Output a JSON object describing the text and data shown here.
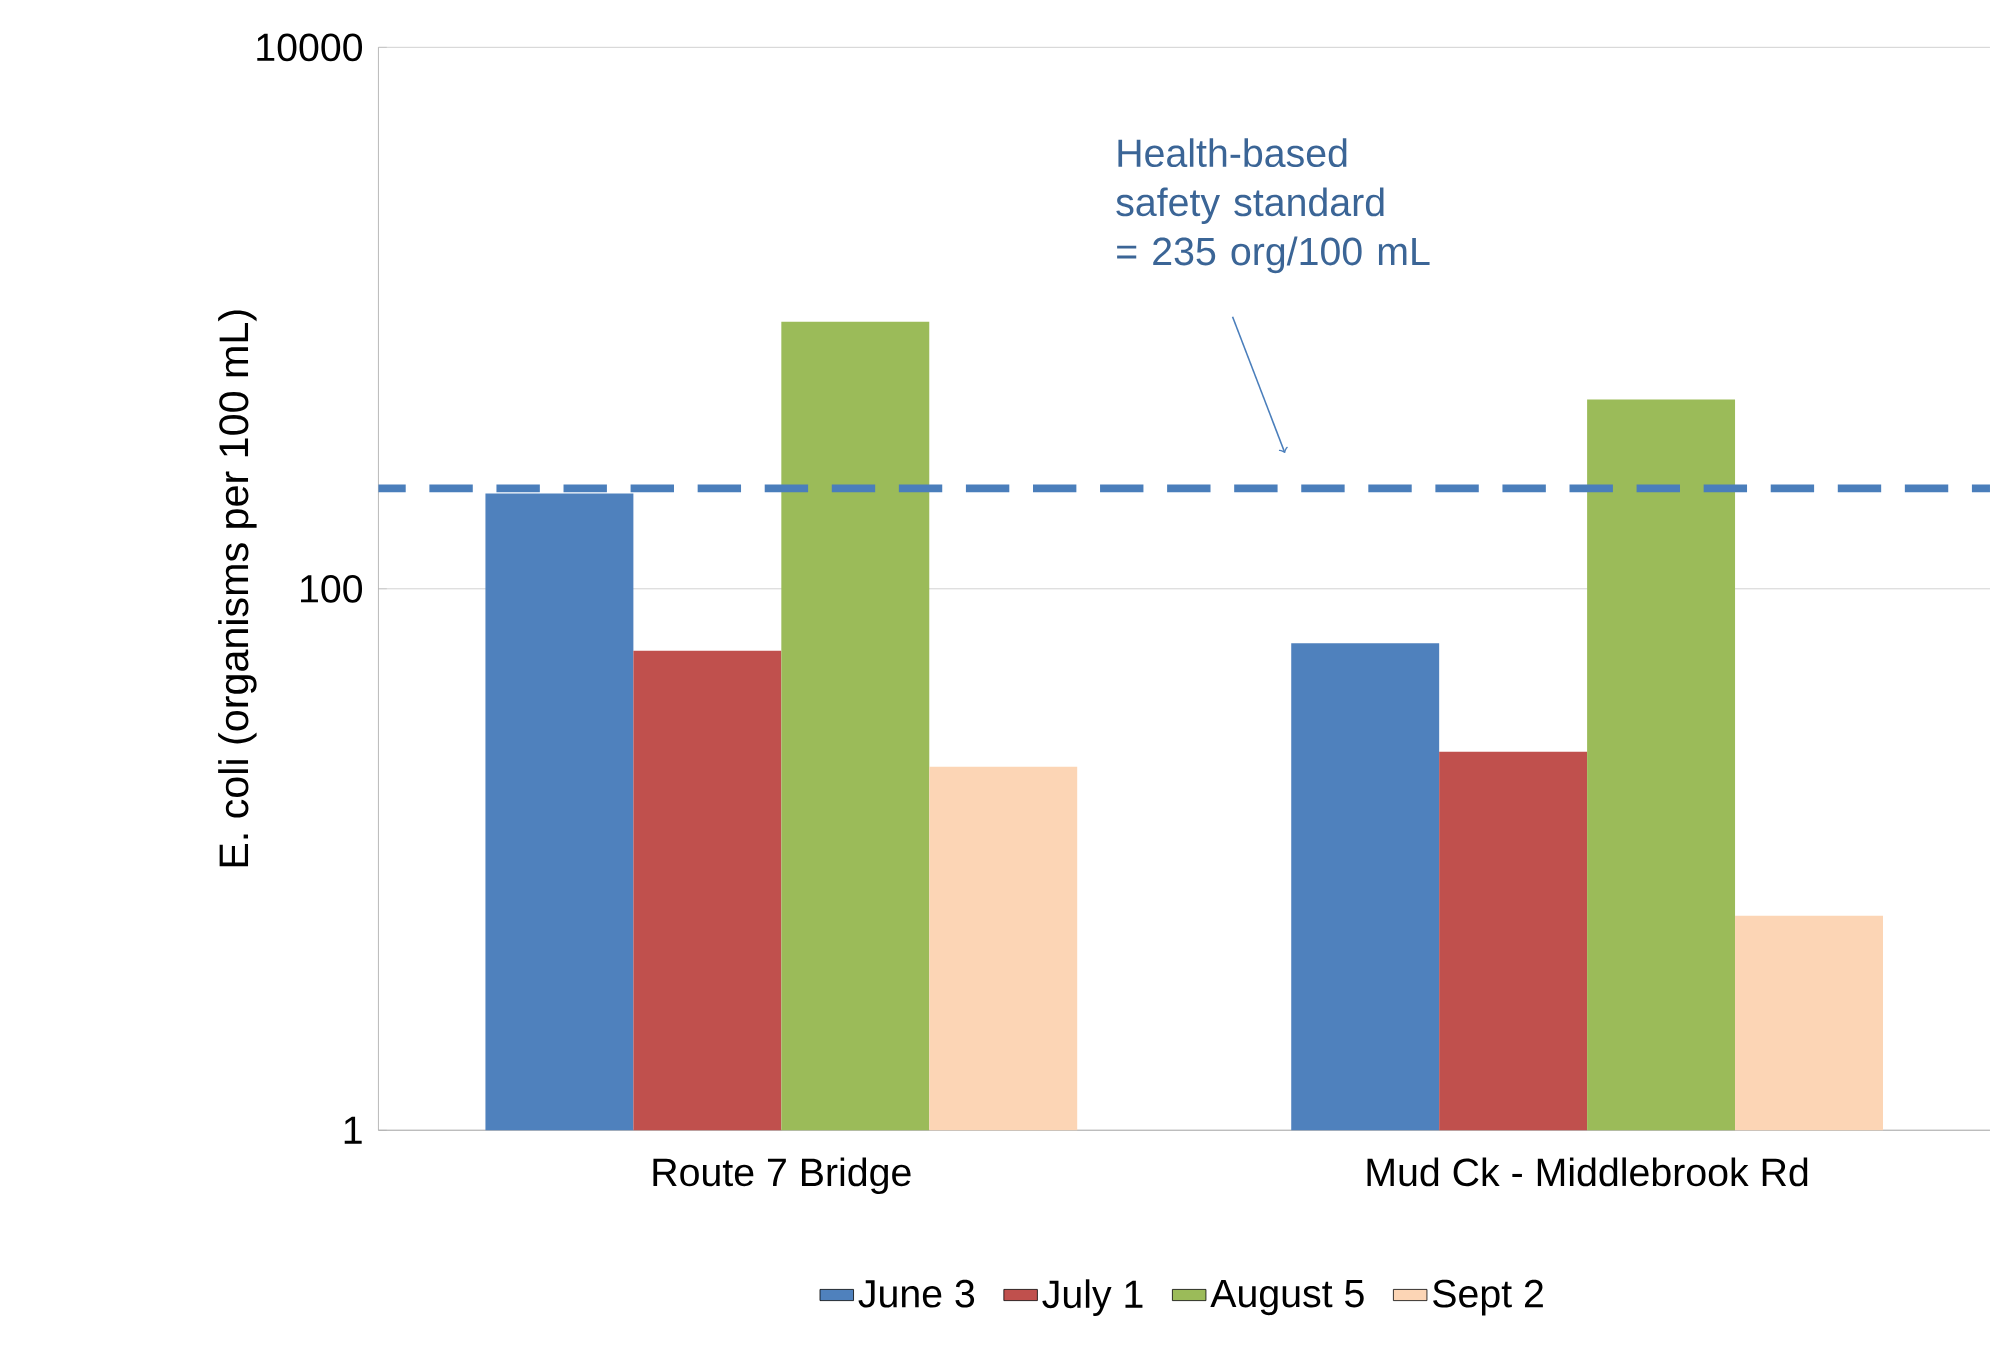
{
  "chart_data": {
    "type": "bar",
    "ylabel": "E. coli (organisms per 100 mL)",
    "categories": [
      "Route 7 Bridge",
      "Mud Ck - Middlebrook Rd"
    ],
    "series": [
      {
        "name": "June 3",
        "color": "#4f81bd",
        "values": [
          225,
          63
        ]
      },
      {
        "name": "July 1",
        "color": "#c0504d",
        "values": [
          59,
          25
        ]
      },
      {
        "name": "August 5",
        "color": "#9bbb59",
        "values": [
          970,
          500
        ]
      },
      {
        "name": "Sept 2",
        "color": "#fcd5b5",
        "values": [
          22,
          6.2
        ]
      }
    ],
    "log": "y",
    "ylim": [
      1,
      10000
    ],
    "yticks": [
      1,
      100,
      10000
    ],
    "grid": "y",
    "legend": "bottom",
    "ref_lines": [
      {
        "axis": "y",
        "value": 235,
        "label": "Health-based safety standard = 235 org/100 mL",
        "color": "#4a7ebb",
        "line_style": "dashed"
      }
    ]
  }
}
